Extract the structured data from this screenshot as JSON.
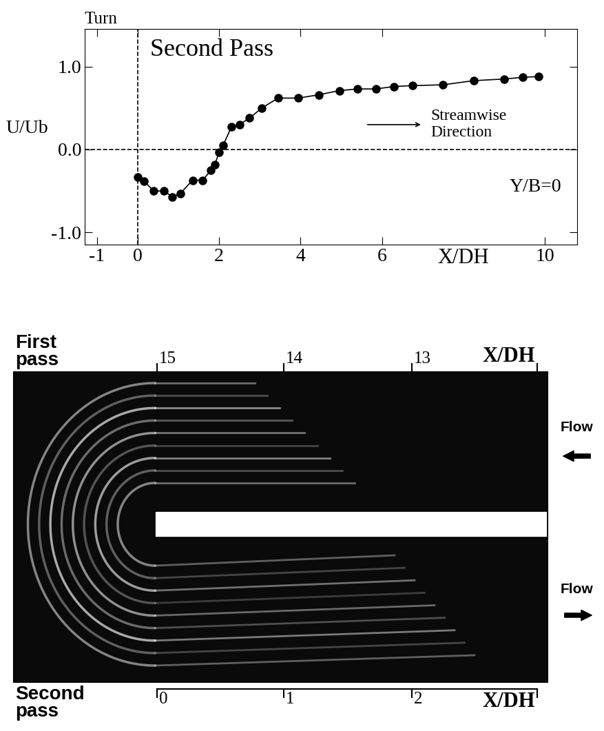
{
  "chart_data": {
    "type": "line",
    "title": "Second Pass",
    "x_label": "X/DH",
    "y_label": "U/Ub",
    "annotations": [
      "Turn",
      "Streamwise\nDirection",
      "Y/B=0"
    ],
    "x": [
      0.0,
      0.15,
      0.4,
      0.65,
      0.85,
      1.05,
      1.35,
      1.6,
      1.8,
      1.9,
      2.0,
      2.1,
      2.3,
      2.5,
      2.75,
      3.05,
      3.45,
      3.95,
      4.45,
      4.95,
      5.4,
      5.85,
      6.3,
      6.75,
      7.5,
      8.25,
      9.0,
      9.45,
      9.85
    ],
    "values": [
      -0.33,
      -0.38,
      -0.5,
      -0.5,
      -0.57,
      -0.53,
      -0.37,
      -0.37,
      -0.25,
      -0.18,
      -0.03,
      0.05,
      0.27,
      0.3,
      0.38,
      0.5,
      0.62,
      0.62,
      0.66,
      0.71,
      0.73,
      0.73,
      0.76,
      0.77,
      0.78,
      0.83,
      0.85,
      0.87,
      0.88
    ],
    "color": "#000000",
    "marker": "o",
    "line_style": "solid",
    "xlim": [
      -1.3,
      10.8
    ],
    "ylim": [
      -1.15,
      1.45
    ],
    "xticks": [
      -1,
      0,
      2,
      4,
      6,
      10
    ],
    "yticks": [
      {
        "value": -1.0,
        "label": "-1.0"
      },
      {
        "value": 0.0,
        "label": "0.0"
      },
      {
        "value": 1.0,
        "label": "1.0"
      }
    ],
    "vlines": [
      0
    ],
    "hlines": [
      0.0
    ],
    "grid": false
  },
  "diagram": {
    "top_label": "First\npass",
    "bottom_label": "Second\npass",
    "top_scale": {
      "label": "X/DH",
      "ticks": [
        15,
        14,
        13
      ]
    },
    "bottom_scale": {
      "label": "X/DH",
      "ticks": [
        0,
        1,
        2
      ]
    },
    "flow_labels": [
      "Flow",
      "Flow"
    ]
  }
}
